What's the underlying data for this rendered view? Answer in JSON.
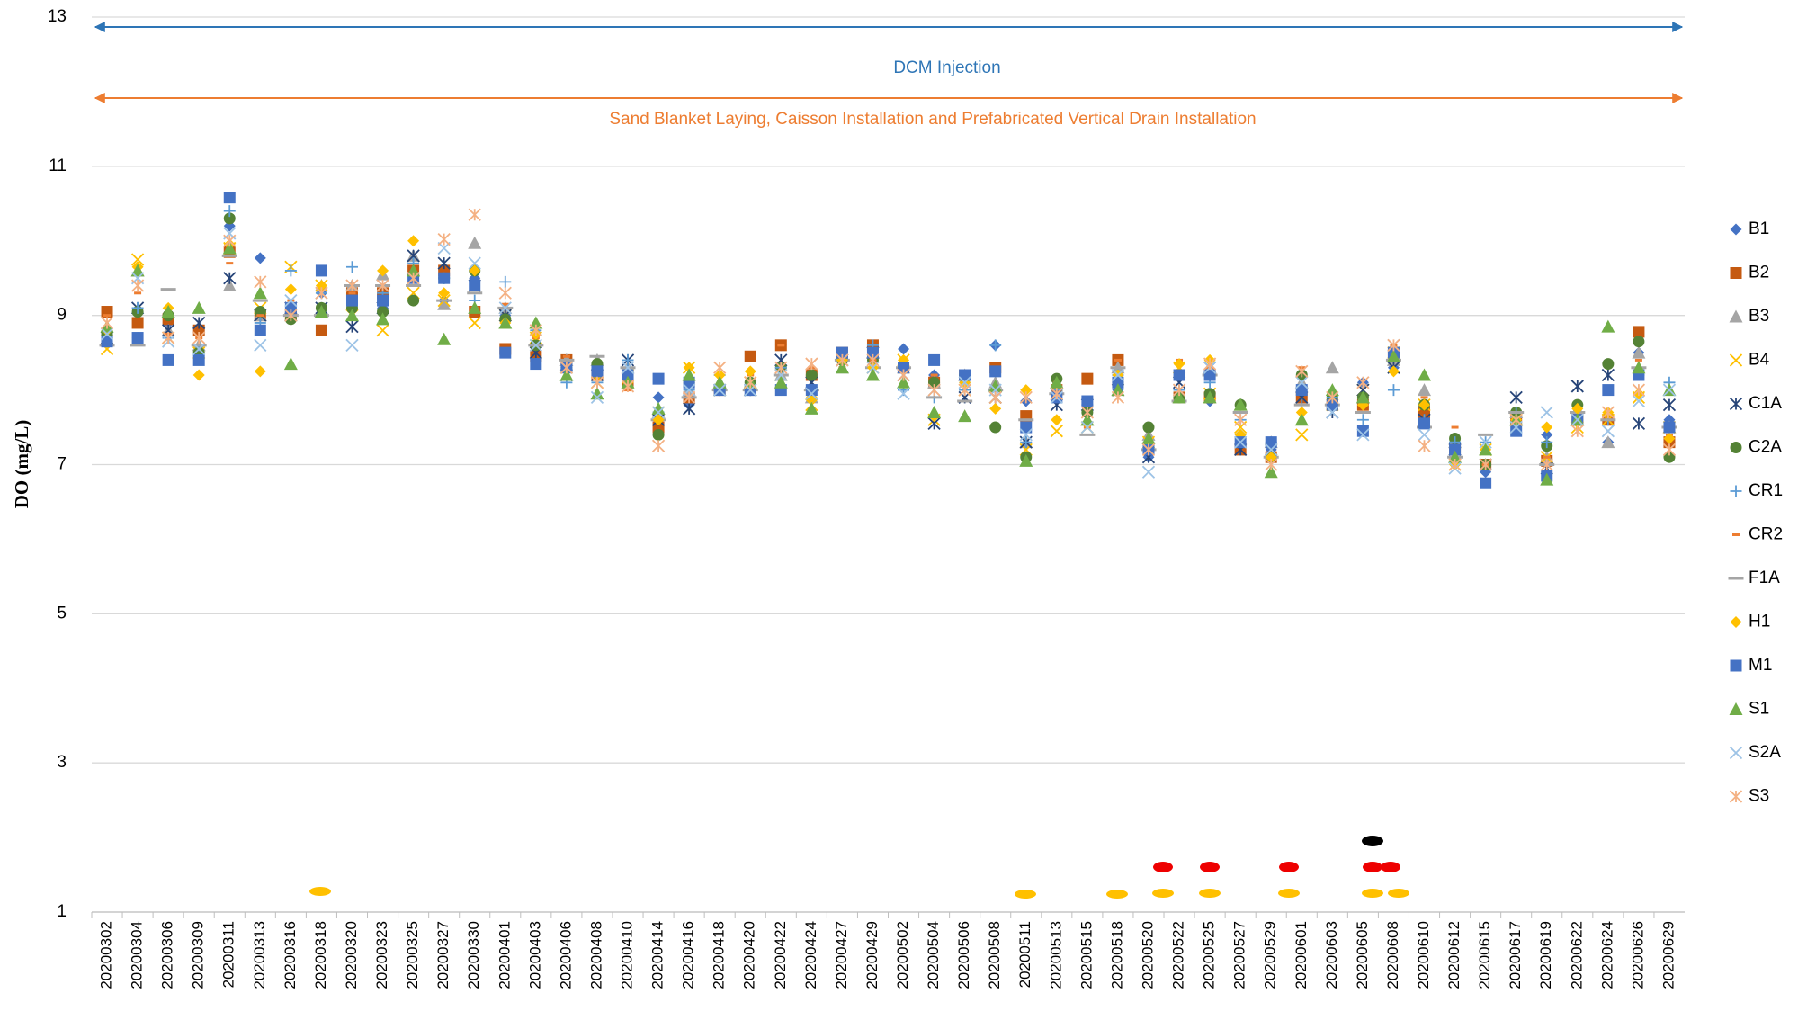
{
  "chart_data": {
    "type": "scatter",
    "ylabel": "DO (mg/L)",
    "annotations": [
      "DCM Injection",
      "Sand Blanket  Laying, Caisson Installation and Prefabricated Vertical Drain Installation"
    ],
    "categories": [
      "20200302",
      "20200304",
      "20200306",
      "20200309",
      "20200311",
      "20200313",
      "20200316",
      "20200318",
      "20200320",
      "20200323",
      "20200325",
      "20200327",
      "20200330",
      "20200401",
      "20200403",
      "20200406",
      "20200408",
      "20200410",
      "20200414",
      "20200416",
      "20200418",
      "20200420",
      "20200422",
      "20200424",
      "20200427",
      "20200429",
      "20200502",
      "20200504",
      "20200506",
      "20200508",
      "20200511",
      "20200513",
      "20200515",
      "20200518",
      "20200520",
      "20200522",
      "20200525",
      "20200527",
      "20200529",
      "20200601",
      "20200603",
      "20200605",
      "20200608",
      "20200610",
      "20200612",
      "20200615",
      "20200617",
      "20200619",
      "20200622",
      "20200624",
      "20200626",
      "20200629"
    ],
    "ylim": [
      1,
      13
    ],
    "yticks": [
      1,
      3,
      5,
      7,
      9,
      11,
      13
    ],
    "grid": true,
    "legend": "right",
    "series": [
      {
        "name": "B1",
        "color": "#4472c4",
        "marker": "diamond",
        "values": [
          8.7,
          8.7,
          8.9,
          8.5,
          10.2,
          9.77,
          9.0,
          9.3,
          9.2,
          9.1,
          9.6,
          9.2,
          9.5,
          9.0,
          8.5,
          8.3,
          8.2,
          8.1,
          7.9,
          7.8,
          8.0,
          8.0,
          8.6,
          8.0,
          8.5,
          8.5,
          8.55,
          8.2,
          8.1,
          8.6,
          7.85,
          7.9,
          7.8,
          8.0,
          7.1,
          7.9,
          7.85,
          7.4,
          7.2,
          7.9,
          7.8,
          8.1,
          8.3,
          7.8,
          7.2,
          6.9,
          7.6,
          7.4,
          7.7,
          7.3,
          8.5,
          7.6
        ]
      },
      {
        "name": "B2",
        "color": "#c55a11",
        "marker": "square",
        "values": [
          9.05,
          8.9,
          8.95,
          8.8,
          9.85,
          9.0,
          9.0,
          8.8,
          9.3,
          9.3,
          9.6,
          9.6,
          9.05,
          8.55,
          8.45,
          8.4,
          8.2,
          8.1,
          7.5,
          7.9,
          8.0,
          8.45,
          8.6,
          8.2,
          8.5,
          8.6,
          8.3,
          8.1,
          8.2,
          8.3,
          7.65,
          8.0,
          8.15,
          8.4,
          7.2,
          7.9,
          7.9,
          7.2,
          7.1,
          7.9,
          7.8,
          7.8,
          8.5,
          7.7,
          7.2,
          7.0,
          7.6,
          7.05,
          7.6,
          7.6,
          8.78,
          7.3
        ]
      },
      {
        "name": "B3",
        "color": "#a5a5a5",
        "marker": "triangle",
        "values": [
          8.8,
          9.6,
          8.8,
          8.6,
          9.4,
          9.0,
          9.0,
          9.4,
          9.4,
          9.55,
          9.8,
          9.15,
          9.97,
          9.1,
          8.8,
          8.4,
          8.4,
          8.3,
          7.7,
          8.0,
          8.1,
          8.0,
          8.2,
          7.9,
          8.3,
          8.5,
          8.3,
          8.1,
          8.2,
          8.1,
          7.3,
          8.1,
          7.6,
          8.3,
          7.4,
          7.9,
          8.3,
          7.8,
          7.3,
          8.1,
          8.3,
          7.9,
          8.4,
          8.0,
          7.3,
          7.0,
          7.7,
          7.1,
          7.6,
          7.3,
          8.5,
          7.5
        ]
      },
      {
        "name": "B4",
        "color": "#ffc000",
        "marker": "x",
        "values": [
          8.55,
          9.75,
          8.7,
          8.5,
          9.9,
          9.1,
          9.65,
          9.4,
          9.0,
          8.8,
          9.3,
          9.2,
          8.9,
          9.0,
          8.7,
          8.3,
          8.1,
          8.2,
          7.7,
          8.3,
          8.0,
          8.1,
          8.2,
          7.8,
          8.4,
          8.3,
          8.4,
          7.6,
          8.0,
          7.9,
          7.2,
          7.45,
          7.5,
          8.0,
          7.3,
          8.3,
          7.95,
          7.5,
          7.2,
          7.4,
          7.8,
          8.0,
          8.5,
          7.8,
          7.0,
          7.2,
          7.6,
          7.1,
          7.5,
          7.6,
          7.9,
          7.5
        ]
      },
      {
        "name": "C1A",
        "color": "#264478",
        "marker": "star",
        "values": [
          8.7,
          9.1,
          8.8,
          8.9,
          9.5,
          9.0,
          9.1,
          9.1,
          8.85,
          9.1,
          9.8,
          9.7,
          9.4,
          9.0,
          8.5,
          8.2,
          8.2,
          8.4,
          7.6,
          7.75,
          8.0,
          8.0,
          8.4,
          8.1,
          8.4,
          8.5,
          8.2,
          7.55,
          7.9,
          7.9,
          7.3,
          7.8,
          7.8,
          8.0,
          7.1,
          8.1,
          8.3,
          7.2,
          7.2,
          7.9,
          7.7,
          8.0,
          8.3,
          7.6,
          7.2,
          7.0,
          7.9,
          6.95,
          8.05,
          8.2,
          7.55,
          7.8
        ]
      },
      {
        "name": "C2A",
        "color": "#548235",
        "marker": "circle",
        "values": [
          8.75,
          9.05,
          9.0,
          8.5,
          10.3,
          9.05,
          8.95,
          9.1,
          9.1,
          9.05,
          9.2,
          9.5,
          9.6,
          8.95,
          8.6,
          8.3,
          8.35,
          8.2,
          7.4,
          8.1,
          8.0,
          8.1,
          8.3,
          8.2,
          8.4,
          8.4,
          8.3,
          8.1,
          8.2,
          7.5,
          7.1,
          8.15,
          7.7,
          8.1,
          7.5,
          7.9,
          7.95,
          7.8,
          7.1,
          8.2,
          7.9,
          7.9,
          8.5,
          7.8,
          7.35,
          7.0,
          7.7,
          7.25,
          7.8,
          8.35,
          8.65,
          7.1
        ]
      },
      {
        "name": "CR1",
        "color": "#5b9bd5",
        "marker": "plus",
        "values": [
          8.65,
          9.1,
          8.7,
          8.6,
          10.4,
          8.9,
          9.6,
          9.3,
          9.65,
          9.3,
          9.7,
          9.5,
          9.2,
          9.45,
          8.8,
          8.1,
          8.1,
          8.4,
          7.7,
          8.0,
          8.2,
          8.0,
          8.3,
          8.0,
          8.5,
          8.6,
          8.0,
          7.9,
          8.0,
          8.6,
          7.3,
          8.0,
          7.8,
          8.2,
          7.3,
          8.0,
          8.1,
          7.6,
          7.3,
          7.8,
          7.9,
          7.6,
          8.0,
          7.6,
          7.3,
          7.3,
          7.7,
          7.3,
          7.6,
          7.6,
          8.2,
          8.1
        ]
      },
      {
        "name": "CR2",
        "color": "#ed7d31",
        "marker": "dash",
        "values": [
          9.0,
          9.3,
          8.75,
          8.7,
          9.7,
          9.0,
          9.2,
          9.35,
          9.3,
          9.2,
          9.4,
          9.5,
          9.1,
          9.15,
          8.7,
          8.45,
          8.3,
          8.0,
          7.6,
          7.9,
          8.0,
          8.2,
          8.6,
          8.3,
          8.3,
          8.4,
          8.3,
          8.2,
          8.2,
          8.3,
          7.6,
          8.1,
          7.5,
          8.4,
          7.3,
          8.4,
          8.3,
          7.7,
          7.1,
          8.3,
          7.8,
          7.7,
          8.6,
          7.9,
          7.5,
          7.0,
          7.7,
          7.1,
          7.6,
          7.6,
          8.4,
          7.4
        ]
      },
      {
        "name": "F1A",
        "color": "#a5a5a5",
        "marker": "longdash",
        "values": [
          8.6,
          8.6,
          9.35,
          8.6,
          9.8,
          9.2,
          9.0,
          9.0,
          9.4,
          9.4,
          9.4,
          9.2,
          9.3,
          9.1,
          8.6,
          8.4,
          8.45,
          8.3,
          7.6,
          7.9,
          8.0,
          8.0,
          8.2,
          8.0,
          8.4,
          8.3,
          8.3,
          7.9,
          7.85,
          8.0,
          7.6,
          7.95,
          7.4,
          8.3,
          7.2,
          7.85,
          8.2,
          7.7,
          7.1,
          7.8,
          7.8,
          7.7,
          8.4,
          7.5,
          7.1,
          7.4,
          7.7,
          7.0,
          7.7,
          7.6,
          8.3,
          7.5
        ]
      },
      {
        "name": "H1",
        "color": "#ffc000",
        "marker": "diamond",
        "values": [
          8.8,
          9.65,
          9.1,
          8.2,
          9.95,
          8.25,
          9.35,
          9.4,
          9.2,
          9.6,
          10.0,
          9.3,
          9.6,
          8.9,
          8.75,
          8.3,
          8.2,
          8.1,
          7.6,
          8.3,
          8.2,
          8.25,
          8.0,
          7.9,
          8.4,
          8.3,
          8.4,
          7.65,
          8.1,
          7.75,
          8.0,
          7.6,
          7.55,
          8.2,
          7.3,
          8.35,
          8.4,
          7.4,
          7.1,
          7.7,
          7.8,
          7.8,
          8.25,
          7.8,
          7.0,
          7.2,
          7.6,
          7.5,
          7.75,
          7.7,
          7.95,
          7.35
        ]
      },
      {
        "name": "M1",
        "color": "#4472c4",
        "marker": "square",
        "values": [
          8.65,
          8.7,
          8.4,
          8.4,
          10.58,
          8.8,
          9.1,
          9.6,
          9.2,
          9.2,
          9.5,
          9.5,
          9.4,
          8.5,
          8.35,
          8.3,
          8.25,
          8.2,
          8.15,
          8.1,
          8.0,
          8.0,
          8.0,
          8.0,
          8.5,
          8.5,
          8.3,
          8.4,
          8.2,
          8.25,
          7.5,
          7.9,
          7.85,
          8.1,
          7.2,
          8.2,
          8.2,
          7.3,
          7.3,
          8.0,
          7.8,
          7.45,
          8.5,
          7.55,
          7.2,
          6.75,
          7.45,
          6.85,
          7.6,
          8.0,
          8.2,
          7.5
        ]
      },
      {
        "name": "S1",
        "color": "#70ad47",
        "marker": "triangle",
        "values": [
          8.85,
          9.6,
          9.05,
          9.1,
          9.9,
          9.3,
          8.35,
          9.05,
          9.0,
          8.95,
          9.6,
          8.68,
          9.1,
          8.9,
          8.9,
          8.2,
          7.95,
          8.1,
          7.75,
          8.2,
          8.1,
          8.1,
          8.1,
          7.75,
          8.3,
          8.2,
          8.1,
          7.7,
          7.65,
          8.05,
          7.05,
          8.1,
          7.6,
          8.0,
          7.35,
          7.9,
          7.9,
          7.8,
          6.9,
          7.6,
          8.0,
          7.9,
          8.45,
          8.2,
          7.1,
          7.2,
          7.6,
          6.8,
          7.6,
          8.85,
          8.3,
          8.0
        ]
      },
      {
        "name": "S2A",
        "color": "#9dc3e6",
        "marker": "x",
        "values": [
          8.75,
          9.5,
          8.65,
          8.55,
          10.1,
          8.6,
          9.2,
          9.3,
          8.6,
          9.4,
          9.5,
          9.9,
          9.7,
          9.1,
          8.6,
          8.3,
          7.9,
          8.3,
          7.7,
          8.0,
          8.0,
          8.0,
          8.2,
          7.95,
          8.4,
          8.3,
          7.95,
          8.0,
          8.1,
          8.0,
          7.4,
          7.9,
          7.5,
          8.2,
          6.9,
          8.0,
          8.3,
          7.3,
          7.2,
          8.1,
          7.7,
          7.4,
          8.6,
          7.4,
          6.95,
          7.3,
          7.5,
          7.7,
          7.6,
          7.45,
          7.85,
          8.0
        ]
      },
      {
        "name": "S3",
        "color": "#f4b183",
        "marker": "star",
        "values": [
          8.9,
          9.4,
          8.7,
          8.7,
          10.0,
          9.45,
          9.0,
          9.3,
          9.4,
          9.4,
          9.5,
          10.02,
          10.35,
          9.3,
          8.8,
          8.3,
          8.1,
          8.05,
          7.25,
          7.9,
          8.3,
          8.1,
          8.3,
          8.35,
          8.4,
          8.4,
          8.2,
          8.0,
          8.0,
          7.9,
          7.9,
          7.95,
          7.7,
          7.9,
          7.2,
          8.0,
          8.35,
          7.6,
          7.0,
          8.25,
          7.9,
          8.1,
          8.6,
          7.25,
          7.0,
          7.0,
          7.6,
          7.0,
          7.45,
          7.7,
          8.0,
          7.2
        ]
      }
    ]
  }
}
